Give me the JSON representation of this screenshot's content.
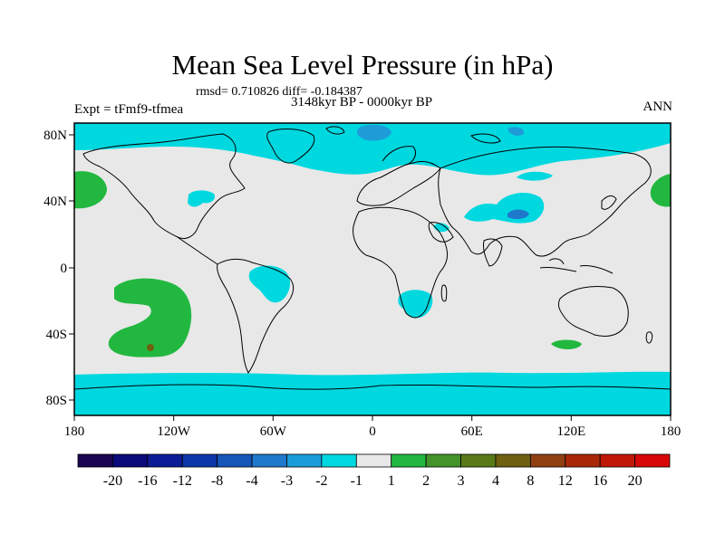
{
  "title": "Mean Sea Level Pressure (in hPa)",
  "stats": "rmsd= 0.710826 diff= -0.184387",
  "experiment": "Expt = tFmf9-tfmea",
  "period": "3148kyr BP - 0000kyr BP",
  "season": "ANN",
  "axes": {
    "lon_ticks": [
      "180",
      "120W",
      "60W",
      "0",
      "60E",
      "120E",
      "180"
    ],
    "lat_ticks": [
      "80N",
      "40N",
      "0",
      "40S",
      "80S"
    ]
  },
  "colorbar": {
    "colors": [
      "#1a0550",
      "#0a0a7a",
      "#0c1c96",
      "#0d36a8",
      "#1656b8",
      "#1e78cc",
      "#1a9cd8",
      "#00d8e0",
      "#e8e8e8",
      "#22b840",
      "#44922a",
      "#5a7a18",
      "#6e6010",
      "#904010",
      "#a82808",
      "#c01808",
      "#d80808"
    ],
    "labels": [
      "-20",
      "-16",
      "-12",
      "-8",
      "-4",
      "-3",
      "-2",
      "-1",
      "1",
      "2",
      "3",
      "4",
      "8",
      "12",
      "16",
      "20"
    ]
  },
  "colors": {
    "land_ocean_neutral": "#e8e8e8",
    "negative_light": "#00d8e0",
    "negative_mid": "#1e78cc",
    "positive_light": "#22b840",
    "positive_mid": "#6e6010"
  }
}
